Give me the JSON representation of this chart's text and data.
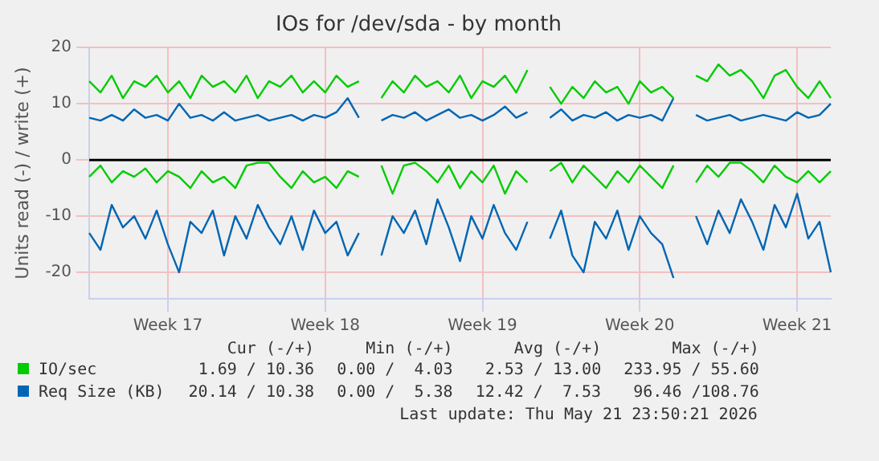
{
  "chart_data": {
    "type": "line",
    "title": "IOs for /dev/sda - by month",
    "ylabel": "Units read (-) / write (+)",
    "categories": [
      null,
      null,
      null,
      null,
      null,
      null,
      null,
      "Week 17",
      null,
      null,
      null,
      null,
      null,
      null,
      null,
      null,
      null,
      null,
      null,
      null,
      null,
      "Week 18",
      null,
      null,
      null,
      null,
      null,
      null,
      null,
      null,
      null,
      null,
      null,
      null,
      null,
      "Week 19",
      null,
      null,
      null,
      null,
      null,
      null,
      null,
      null,
      null,
      null,
      null,
      null,
      null,
      "Week 20",
      null,
      null,
      null,
      null,
      null,
      null,
      null,
      null,
      null,
      null,
      null,
      null,
      null,
      "Week 21",
      null,
      null,
      null
    ],
    "ylim": [
      -24.7,
      20
    ],
    "yticks": [
      -20,
      -10,
      0,
      10,
      20
    ],
    "grid": true,
    "legend": "bottom",
    "series": [
      {
        "name": "IO/sec",
        "color": "#00cc00",
        "values": [
          14,
          12,
          15,
          11,
          14,
          13,
          15,
          12,
          14,
          11,
          15,
          13,
          14,
          12,
          15,
          11,
          14,
          13,
          15,
          12,
          14,
          12,
          15,
          13,
          14,
          null,
          11,
          14,
          12,
          15,
          13,
          14,
          12,
          15,
          11,
          14,
          13,
          15,
          12,
          16,
          null,
          13,
          10,
          13,
          11,
          14,
          12,
          13,
          10,
          14,
          12,
          13,
          11,
          null,
          15,
          14,
          17,
          15,
          16,
          14,
          11,
          15,
          16,
          13,
          11,
          14,
          11
        ]
      },
      {
        "name": "Req Size (KB)",
        "color": "#0066b3",
        "values": [
          7.5,
          7,
          8,
          7,
          9,
          7.5,
          8,
          7,
          10,
          7.5,
          8,
          7,
          8.5,
          7,
          7.5,
          8,
          7,
          7.5,
          8,
          7,
          8,
          7.5,
          8.5,
          11,
          7.5,
          null,
          7,
          8,
          7.5,
          8.5,
          7,
          8,
          9,
          7.5,
          8,
          7,
          8,
          9.5,
          7.5,
          8.5,
          null,
          7.5,
          9,
          7,
          8,
          7.5,
          8.5,
          7,
          8,
          7.5,
          8,
          7,
          11,
          null,
          8,
          7,
          7.5,
          8,
          7,
          7.5,
          8,
          7.5,
          7,
          8.5,
          7.5,
          8,
          10
        ]
      },
      {
        "color": "#00cc00",
        "values": [
          -3,
          -1,
          -4,
          -2,
          -3,
          -1.5,
          -4,
          -2,
          -3,
          -5,
          -2,
          -4,
          -3,
          -5,
          -1,
          -0.5,
          -0.5,
          -3,
          -5,
          -2,
          -4,
          -3,
          -5,
          -2,
          -3,
          null,
          -1,
          -6,
          -1,
          -0.5,
          -2,
          -4,
          -1,
          -5,
          -2,
          -4,
          -1,
          -6,
          -2,
          -4,
          null,
          -2,
          -0.5,
          -4,
          -1,
          -3,
          -5,
          -2,
          -4,
          -1,
          -3,
          -5,
          -1,
          null,
          -4,
          -1,
          -3,
          -0.5,
          -0.5,
          -2,
          -4,
          -1,
          -3,
          -4,
          -2,
          -4,
          -2
        ]
      },
      {
        "color": "#0066b3",
        "values": [
          -13,
          -16,
          -8,
          -12,
          -10,
          -14,
          -9,
          -15,
          -20,
          -11,
          -13,
          -9,
          -17,
          -10,
          -14,
          -8,
          -12,
          -15,
          -10,
          -16,
          -9,
          -13,
          -11,
          -17,
          -13,
          null,
          -17,
          -10,
          -13,
          -9,
          -15,
          -7,
          -12,
          -18,
          -10,
          -14,
          -8,
          -13,
          -16,
          -11,
          null,
          -14,
          -9,
          -17,
          -20,
          -11,
          -14,
          -9,
          -16,
          -10,
          -13,
          -15,
          -21,
          null,
          -10,
          -15,
          -9,
          -13,
          -7,
          -11,
          -16,
          -8,
          -12,
          -6,
          -14,
          -11,
          -20
        ]
      }
    ],
    "ref_lines": [
      {
        "axis": "y",
        "value": 0,
        "color": "#000000"
      }
    ],
    "annotations": [
      "Cur (-/+)",
      "Min (-/+)",
      "Avg (-/+)",
      "Max (-/+)",
      "1.69 / 10.36",
      "0.00 /  4.03",
      "2.53 / 13.00",
      "233.95 / 55.60",
      "20.14 / 10.38",
      "0.00 /  5.38",
      "12.42 /  7.53",
      "96.46 /108.76",
      "Last update: Thu May 21 23:50:21 2026"
    ]
  }
}
